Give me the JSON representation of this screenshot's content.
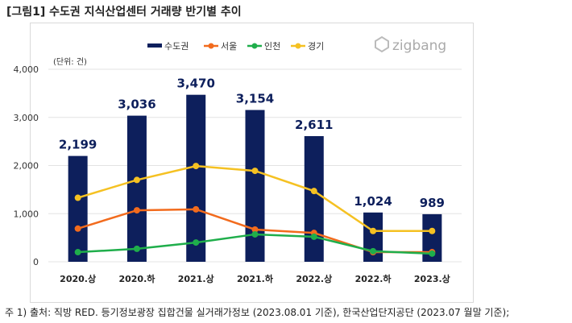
{
  "title": "[그림1] 수도권 지식산업센터 거래량 반기별 추이",
  "logo": "zigbang",
  "note": "주 1) 출처: 직방 RED. 등기정보광장 집합건물 실거래가정보 (2023.08.01 기준), 한국산업단지공단 (2023.07 월말 기준);",
  "chart_data": {
    "type": "bar+line",
    "unit_label": "(단위: 건)",
    "categories": [
      "2020.상",
      "2020.하",
      "2021.상",
      "2021.하",
      "2022.상",
      "2022.하",
      "2023.상"
    ],
    "ylim": [
      0,
      4000
    ],
    "yticks": [
      "0",
      "1,000",
      "2,000",
      "3,000",
      "4,000"
    ],
    "grid": true,
    "legend": "top",
    "series": [
      {
        "name": "수도권",
        "type": "bar",
        "color": "#0d1f5c",
        "values": [
          2199,
          3036,
          3470,
          3154,
          2611,
          1024,
          989
        ],
        "labels": [
          "2,199",
          "3,036",
          "3,470",
          "3,154",
          "2,611",
          "1,024",
          "989"
        ]
      },
      {
        "name": "서울",
        "type": "line",
        "color": "#f26b1d",
        "values": [
          690,
          1070,
          1090,
          670,
          600,
          200,
          200
        ]
      },
      {
        "name": "인천",
        "type": "line",
        "color": "#1fae4b",
        "values": [
          200,
          270,
          400,
          570,
          520,
          220,
          170
        ]
      },
      {
        "name": "경기",
        "type": "line",
        "color": "#f5c122",
        "values": [
          1330,
          1700,
          1990,
          1890,
          1470,
          640,
          640
        ]
      }
    ]
  }
}
